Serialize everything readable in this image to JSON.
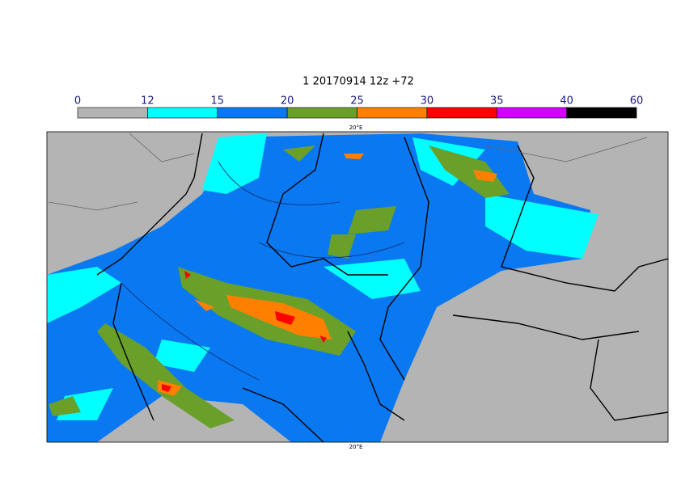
{
  "title": "1 20170914 12z +72",
  "colorbar": {
    "ticks": [
      0,
      12,
      15,
      20,
      25,
      30,
      35,
      40,
      60
    ],
    "colors": [
      "#b4b4b4",
      "#00ffff",
      "#0a78f0",
      "#6aa02a",
      "#ff8000",
      "#ff0000",
      "#d200ff",
      "#000000"
    ]
  },
  "lon_label_top": "20°E",
  "lon_label_bottom": "20°E"
}
